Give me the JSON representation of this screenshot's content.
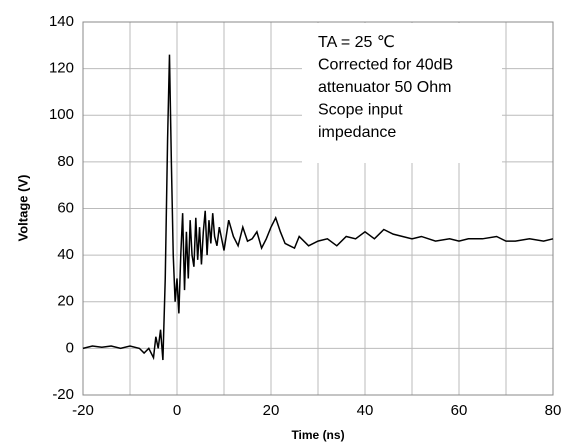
{
  "chart_data": {
    "type": "line",
    "xlabel": "Time  (ns)",
    "ylabel": "Voltage (V)",
    "annotations": [
      "TA = 25 ℃",
      "Corrected for 40dB",
      "attenuator 50 Ohm",
      "Scope input",
      "impedance"
    ],
    "xlim": [
      -20,
      80
    ],
    "ylim": [
      -20,
      140
    ],
    "xticks": [
      -20,
      0,
      20,
      40,
      60,
      80
    ],
    "yticks": [
      -20,
      0,
      20,
      40,
      60,
      80,
      100,
      120,
      140
    ],
    "grid": true,
    "series": [
      {
        "color": "#000000",
        "x": [
          -20,
          -18,
          -16,
          -14,
          -12,
          -10,
          -8,
          -7,
          -6,
          -5,
          -4.5,
          -4,
          -3.5,
          -3,
          -2.5,
          -2,
          -1.6,
          -1.2,
          -0.8,
          -0.4,
          0,
          0.4,
          0.8,
          1.2,
          1.6,
          2,
          2.4,
          2.8,
          3.2,
          3.6,
          4,
          4.4,
          4.8,
          5.2,
          5.6,
          6,
          6.4,
          6.8,
          7.2,
          7.6,
          8,
          8.5,
          9,
          10,
          11,
          12,
          13,
          14,
          15,
          16,
          17,
          18,
          19,
          20,
          21,
          22,
          23,
          24,
          25,
          26,
          28,
          30,
          32,
          34,
          36,
          38,
          40,
          42,
          44,
          46,
          48,
          50,
          52,
          55,
          58,
          60,
          62,
          65,
          68,
          70,
          72,
          75,
          78,
          80
        ],
        "values": [
          0,
          1,
          0.5,
          1,
          0,
          1,
          0,
          -2,
          0,
          -4,
          5,
          0,
          8,
          -5,
          30,
          90,
          126,
          80,
          40,
          20,
          30,
          15,
          40,
          58,
          25,
          50,
          30,
          55,
          40,
          35,
          56,
          38,
          52,
          36,
          50,
          59,
          40,
          55,
          45,
          58,
          48,
          44,
          52,
          42,
          55,
          48,
          44,
          52,
          46,
          47,
          50,
          43,
          47,
          52,
          56,
          50,
          45,
          44,
          43,
          48,
          44,
          46,
          47,
          44,
          48,
          47,
          50,
          47,
          51,
          49,
          48,
          47,
          48,
          46,
          47,
          46,
          47,
          47,
          48,
          46,
          46,
          47,
          46,
          47
        ]
      }
    ]
  }
}
